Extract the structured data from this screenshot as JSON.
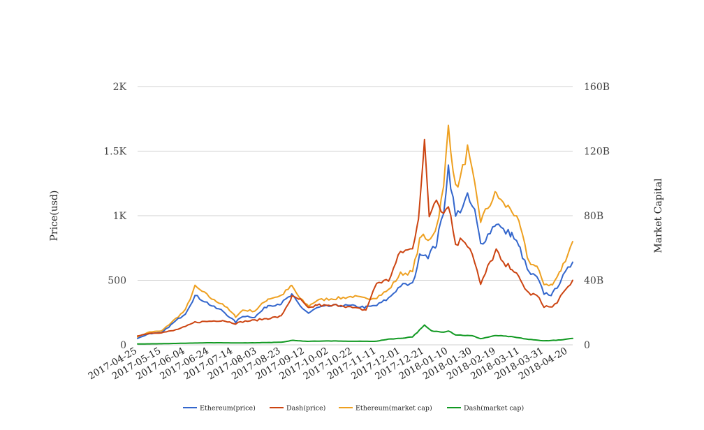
{
  "chart_data": {
    "type": "line",
    "title": "",
    "ylabel_left": "Price(usd)",
    "ylabel_right": "Market Capital",
    "left_axis": {
      "min": 0,
      "max": 2000,
      "ticks": [
        0,
        500,
        1000,
        1500,
        2000
      ],
      "tick_labels": [
        "0",
        "500",
        "1K",
        "1.5K",
        "2K"
      ]
    },
    "right_axis": {
      "min": 0,
      "max": 160000000000,
      "ticks": [
        0,
        40000000000,
        80000000000,
        120000000000,
        160000000000
      ],
      "tick_labels": [
        "0",
        "40B",
        "80B",
        "120B",
        "160B"
      ]
    },
    "x_range": [
      "2017-04-25",
      "2018-04-24"
    ],
    "x_ticks": [
      "2017-04-25",
      "2017-05-15",
      "2017-06-04",
      "2017-06-24",
      "2017-07-14",
      "2017-08-03",
      "2017-08-23",
      "2017-09-12",
      "2017-10-02",
      "2017-10-22",
      "2017-11-11",
      "2017-12-01",
      "2017-12-21",
      "2018-01-10",
      "2018-01-30",
      "2018-02-19",
      "2018-03-11",
      "2018-03-31",
      "2018-04-20"
    ],
    "grid": true,
    "legend_position": "bottom",
    "series": [
      {
        "name": "Ethereum(price)",
        "axis": "left",
        "color": "#3366cc",
        "points": [
          [
            "2017-04-25",
            50
          ],
          [
            "2017-05-05",
            88
          ],
          [
            "2017-05-15",
            92
          ],
          [
            "2017-05-25",
            170
          ],
          [
            "2017-06-04",
            245
          ],
          [
            "2017-06-12",
            380
          ],
          [
            "2017-06-20",
            340
          ],
          [
            "2017-06-28",
            290
          ],
          [
            "2017-07-05",
            265
          ],
          [
            "2017-07-16",
            175
          ],
          [
            "2017-07-22",
            225
          ],
          [
            "2017-08-01",
            215
          ],
          [
            "2017-08-12",
            305
          ],
          [
            "2017-08-23",
            320
          ],
          [
            "2017-09-01",
            385
          ],
          [
            "2017-09-08",
            300
          ],
          [
            "2017-09-15",
            245
          ],
          [
            "2017-09-22",
            285
          ],
          [
            "2017-10-02",
            300
          ],
          [
            "2017-10-12",
            305
          ],
          [
            "2017-10-22",
            300
          ],
          [
            "2017-11-02",
            290
          ],
          [
            "2017-11-11",
            305
          ],
          [
            "2017-11-21",
            360
          ],
          [
            "2017-12-01",
            460
          ],
          [
            "2017-12-11",
            470
          ],
          [
            "2017-12-18",
            720
          ],
          [
            "2017-12-24",
            690
          ],
          [
            "2017-12-31",
            780
          ],
          [
            "2018-01-06",
            1040
          ],
          [
            "2018-01-10",
            1380
          ],
          [
            "2018-01-16",
            990
          ],
          [
            "2018-01-20",
            1050
          ],
          [
            "2018-01-26",
            1140
          ],
          [
            "2018-02-01",
            1030
          ],
          [
            "2018-02-06",
            780
          ],
          [
            "2018-02-12",
            850
          ],
          [
            "2018-02-19",
            950
          ],
          [
            "2018-02-25",
            880
          ],
          [
            "2018-03-04",
            860
          ],
          [
            "2018-03-11",
            740
          ],
          [
            "2018-03-18",
            560
          ],
          [
            "2018-03-25",
            520
          ],
          [
            "2018-03-31",
            400
          ],
          [
            "2018-04-07",
            390
          ],
          [
            "2018-04-14",
            500
          ],
          [
            "2018-04-24",
            640
          ]
        ]
      },
      {
        "name": "Dash(price)",
        "axis": "left",
        "color": "#cc4411",
        "points": [
          [
            "2017-04-25",
            70
          ],
          [
            "2017-05-05",
            90
          ],
          [
            "2017-05-15",
            95
          ],
          [
            "2017-05-25",
            110
          ],
          [
            "2017-06-04",
            140
          ],
          [
            "2017-06-12",
            175
          ],
          [
            "2017-06-20",
            180
          ],
          [
            "2017-06-28",
            185
          ],
          [
            "2017-07-05",
            190
          ],
          [
            "2017-07-16",
            165
          ],
          [
            "2017-07-22",
            180
          ],
          [
            "2017-08-01",
            190
          ],
          [
            "2017-08-12",
            205
          ],
          [
            "2017-08-23",
            220
          ],
          [
            "2017-09-01",
            370
          ],
          [
            "2017-09-08",
            350
          ],
          [
            "2017-09-15",
            280
          ],
          [
            "2017-09-22",
            310
          ],
          [
            "2017-10-02",
            300
          ],
          [
            "2017-10-12",
            310
          ],
          [
            "2017-10-22",
            285
          ],
          [
            "2017-11-02",
            270
          ],
          [
            "2017-11-11",
            480
          ],
          [
            "2017-11-21",
            500
          ],
          [
            "2017-12-01",
            720
          ],
          [
            "2017-12-11",
            740
          ],
          [
            "2017-12-16",
            1000
          ],
          [
            "2017-12-21",
            1550
          ],
          [
            "2017-12-25",
            1000
          ],
          [
            "2017-12-31",
            1150
          ],
          [
            "2018-01-06",
            1020
          ],
          [
            "2018-01-10",
            1100
          ],
          [
            "2018-01-16",
            780
          ],
          [
            "2018-01-22",
            820
          ],
          [
            "2018-01-28",
            760
          ],
          [
            "2018-02-01",
            650
          ],
          [
            "2018-02-06",
            460
          ],
          [
            "2018-02-12",
            600
          ],
          [
            "2018-02-19",
            730
          ],
          [
            "2018-02-25",
            620
          ],
          [
            "2018-03-04",
            600
          ],
          [
            "2018-03-11",
            500
          ],
          [
            "2018-03-18",
            400
          ],
          [
            "2018-03-25",
            380
          ],
          [
            "2018-03-31",
            300
          ],
          [
            "2018-04-07",
            290
          ],
          [
            "2018-04-14",
            370
          ],
          [
            "2018-04-24",
            500
          ]
        ]
      },
      {
        "name": "Ethereum(market cap)",
        "axis": "right",
        "color": "#eea020",
        "points": [
          [
            "2017-04-25",
            5000000000
          ],
          [
            "2017-05-05",
            8000000000
          ],
          [
            "2017-05-15",
            8500000000
          ],
          [
            "2017-05-25",
            15000000000
          ],
          [
            "2017-06-04",
            21500000000
          ],
          [
            "2017-06-12",
            36000000000
          ],
          [
            "2017-06-20",
            32000000000
          ],
          [
            "2017-06-28",
            27500000000
          ],
          [
            "2017-07-05",
            25500000000
          ],
          [
            "2017-07-16",
            17500000000
          ],
          [
            "2017-07-22",
            21500000000
          ],
          [
            "2017-08-01",
            21000000000
          ],
          [
            "2017-08-12",
            28500000000
          ],
          [
            "2017-08-23",
            30500000000
          ],
          [
            "2017-09-01",
            36500000000
          ],
          [
            "2017-09-08",
            28500000000
          ],
          [
            "2017-09-15",
            24000000000
          ],
          [
            "2017-09-22",
            27500000000
          ],
          [
            "2017-10-02",
            28500000000
          ],
          [
            "2017-10-12",
            29000000000
          ],
          [
            "2017-10-22",
            30000000000
          ],
          [
            "2017-11-02",
            28500000000
          ],
          [
            "2017-11-11",
            29500000000
          ],
          [
            "2017-11-21",
            34000000000
          ],
          [
            "2017-12-01",
            44000000000
          ],
          [
            "2017-12-11",
            45000000000
          ],
          [
            "2017-12-18",
            68000000000
          ],
          [
            "2017-12-24",
            64000000000
          ],
          [
            "2017-12-31",
            73000000000
          ],
          [
            "2018-01-06",
            97000000000
          ],
          [
            "2018-01-10",
            136000000000
          ],
          [
            "2018-01-16",
            97000000000
          ],
          [
            "2018-01-20",
            103000000000
          ],
          [
            "2018-01-26",
            121000000000
          ],
          [
            "2018-02-01",
            98000000000
          ],
          [
            "2018-02-06",
            77000000000
          ],
          [
            "2018-02-12",
            85000000000
          ],
          [
            "2018-02-19",
            94000000000
          ],
          [
            "2018-02-25",
            87000000000
          ],
          [
            "2018-03-04",
            84000000000
          ],
          [
            "2018-03-11",
            73000000000
          ],
          [
            "2018-03-18",
            52000000000
          ],
          [
            "2018-03-25",
            48000000000
          ],
          [
            "2018-03-31",
            38000000000
          ],
          [
            "2018-04-07",
            37000000000
          ],
          [
            "2018-04-14",
            46000000000
          ],
          [
            "2018-04-24",
            64000000000
          ]
        ]
      },
      {
        "name": "Dash(market cap)",
        "axis": "right",
        "color": "#119922",
        "points": [
          [
            "2017-04-25",
            500000000
          ],
          [
            "2017-05-15",
            700000000
          ],
          [
            "2017-06-04",
            1000000000
          ],
          [
            "2017-06-24",
            1300000000
          ],
          [
            "2017-07-14",
            1200000000
          ],
          [
            "2017-08-03",
            1300000000
          ],
          [
            "2017-08-23",
            1600000000
          ],
          [
            "2017-09-02",
            2800000000
          ],
          [
            "2017-09-12",
            2200000000
          ],
          [
            "2017-10-02",
            2400000000
          ],
          [
            "2017-10-22",
            2200000000
          ],
          [
            "2017-11-11",
            2200000000
          ],
          [
            "2017-11-21",
            3600000000
          ],
          [
            "2017-12-01",
            4000000000
          ],
          [
            "2017-12-11",
            5000000000
          ],
          [
            "2017-12-21",
            12000000000
          ],
          [
            "2017-12-27",
            8500000000
          ],
          [
            "2018-01-06",
            8000000000
          ],
          [
            "2018-01-10",
            8800000000
          ],
          [
            "2018-01-16",
            6200000000
          ],
          [
            "2018-01-30",
            5600000000
          ],
          [
            "2018-02-06",
            3800000000
          ],
          [
            "2018-02-19",
            5800000000
          ],
          [
            "2018-03-04",
            5000000000
          ],
          [
            "2018-03-18",
            3400000000
          ],
          [
            "2018-03-31",
            2500000000
          ],
          [
            "2018-04-14",
            3000000000
          ],
          [
            "2018-04-24",
            4000000000
          ]
        ]
      }
    ]
  }
}
